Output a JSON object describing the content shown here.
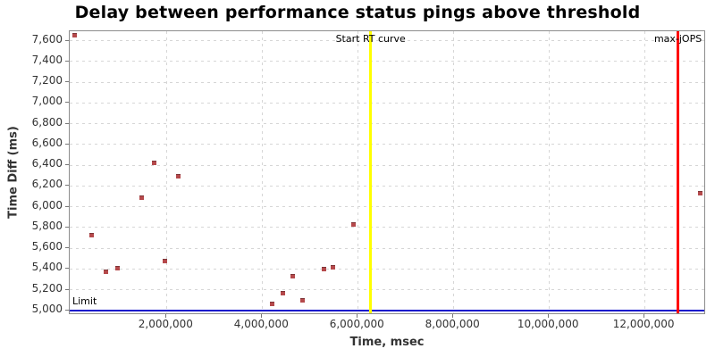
{
  "chart_data": {
    "type": "scatter",
    "title": "Delay between performance status pings above threshold",
    "xlabel": "Time, msec",
    "ylabel": "Time Diff (ms)",
    "xlim": [
      -26000,
      13250000
    ],
    "ylim": [
      4974,
      7691
    ],
    "grid": true,
    "legend_position": "none",
    "x_ticks": [
      2000000,
      4000000,
      6000000,
      8000000,
      10000000,
      12000000
    ],
    "x_tick_labels": [
      "2,000,000",
      "4,000,000",
      "6,000,000",
      "8,000,000",
      "10,000,000",
      "12,000,000"
    ],
    "y_ticks": [
      5000,
      5200,
      5400,
      5600,
      5800,
      6000,
      6200,
      6400,
      6600,
      6800,
      7000,
      7200,
      7400,
      7600
    ],
    "y_tick_labels": [
      "5,000",
      "5,200",
      "5,400",
      "5,600",
      "5,800",
      "6,000",
      "6,200",
      "6,400",
      "6,600",
      "6,800",
      "7,000",
      "7,200",
      "7,400",
      "7,600"
    ],
    "series": [
      {
        "name": "ping-delay",
        "marker": "square",
        "color": "#b5494b",
        "points": [
          [
            80000,
            7650
          ],
          [
            440000,
            5730
          ],
          [
            740000,
            5370
          ],
          [
            980000,
            5410
          ],
          [
            1480000,
            6090
          ],
          [
            1740000,
            6420
          ],
          [
            1970000,
            5480
          ],
          [
            2240000,
            6290
          ],
          [
            4200000,
            5060
          ],
          [
            4440000,
            5170
          ],
          [
            4640000,
            5330
          ],
          [
            4840000,
            5100
          ],
          [
            5290000,
            5400
          ],
          [
            5480000,
            5420
          ],
          [
            5920000,
            5830
          ],
          [
            13160000,
            6130
          ]
        ]
      }
    ],
    "vmarkers": [
      {
        "label": "Start RT curve",
        "x": 6270000,
        "color": "#ffff00"
      },
      {
        "label": "max-jOPS",
        "x": 12700000,
        "color": "#ff0000"
      }
    ],
    "hmarkers": [
      {
        "label": "Limit",
        "y": 5000,
        "color": "#1414cc"
      }
    ],
    "colors": {
      "marker": "#b5494b",
      "grid": "#d6d6d6",
      "plot_border": "#8c8c8c",
      "tick_label": "#333333",
      "title": "#000000"
    }
  }
}
